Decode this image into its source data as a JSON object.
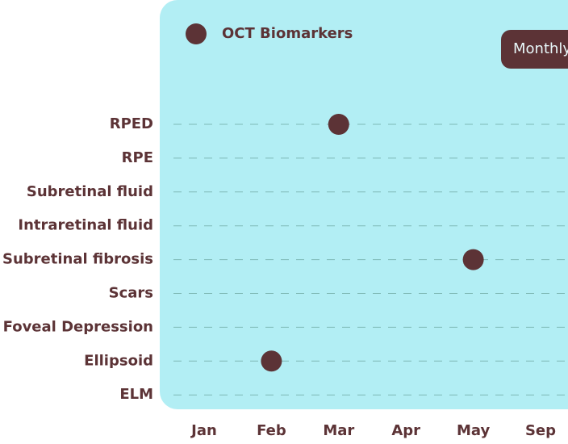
{
  "chart_data": {
    "type": "dot-timeline",
    "title": "OCT Biomarkers",
    "button": "Monthly",
    "x_categories": [
      "Jan",
      "Feb",
      "Mar",
      "Apr",
      "May",
      "Sep"
    ],
    "y_categories": [
      "RPED",
      "RPE",
      "Subretinal fluid",
      "Intraretinal fluid",
      "Subretinal fibrosis",
      "Scars",
      "Foveal Depression",
      "Ellipsoid",
      "ELM"
    ],
    "series": [
      {
        "name": "OCT Biomarkers",
        "color": "#5c3336",
        "points": [
          {
            "x": "Mar",
            "y": "RPED"
          },
          {
            "x": "May",
            "y": "Subretinal fibrosis"
          },
          {
            "x": "Feb",
            "y": "Ellipsoid"
          }
        ]
      }
    ],
    "panel_color": "#b2eef4",
    "grid": true
  }
}
